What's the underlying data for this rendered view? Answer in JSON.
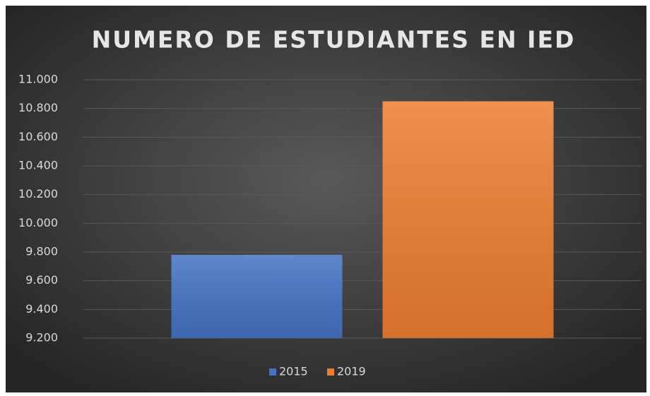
{
  "chart_data": {
    "type": "bar",
    "title": "NUMERO DE ESTUDIANTES EN IED",
    "categories": [
      null
    ],
    "series": [
      {
        "name": "2015",
        "color": "#4472c4",
        "values": [
          9780
        ]
      },
      {
        "name": "2019",
        "color": "#ed7d31",
        "values": [
          10850
        ]
      }
    ],
    "ylim": [
      9200,
      11000
    ],
    "yticks": [
      {
        "value": 9200,
        "label": "9.200"
      },
      {
        "value": 9400,
        "label": "9.400"
      },
      {
        "value": 9600,
        "label": "9.600"
      },
      {
        "value": 9800,
        "label": "9.800"
      },
      {
        "value": 10000,
        "label": "10.000"
      },
      {
        "value": 10200,
        "label": "10.200"
      },
      {
        "value": 10400,
        "label": "10.400"
      },
      {
        "value": 10600,
        "label": "10.600"
      },
      {
        "value": 10800,
        "label": "10.800"
      },
      {
        "value": 11000,
        "label": "11.000"
      }
    ],
    "grid": true,
    "legend": "bottom"
  }
}
